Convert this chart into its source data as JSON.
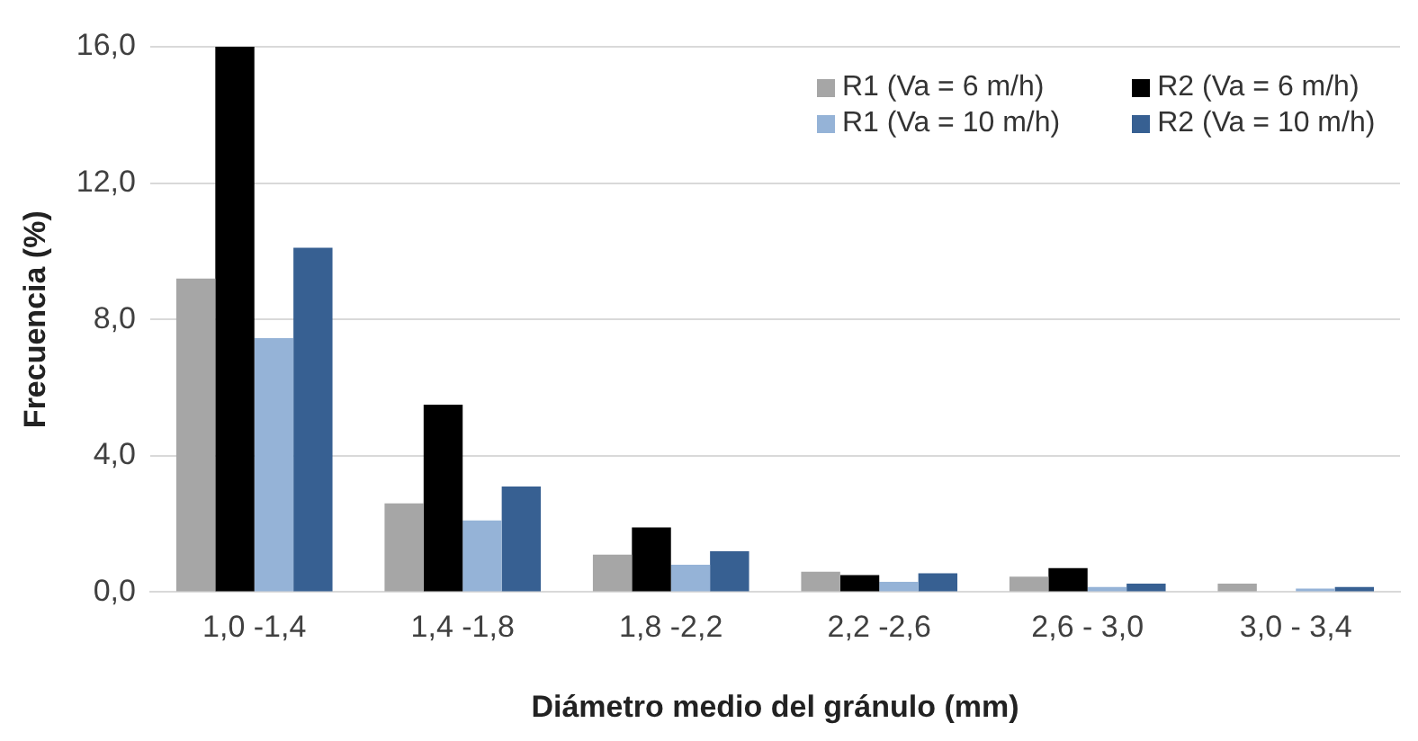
{
  "chart_data": {
    "type": "bar",
    "xlabel": "Diámetro medio del gránulo (mm)",
    "ylabel": "Frecuencia (%)",
    "categories": [
      "1,0 -1,4",
      "1,4 -1,8",
      "1,8 -2,2",
      "2,2 -2,6",
      "2,6 - 3,0",
      "3,0 - 3,4"
    ],
    "series": [
      {
        "name": "R1 (Va = 6 m/h)",
        "color": "#a6a6a6",
        "values": [
          9.2,
          2.6,
          1.1,
          0.6,
          0.45,
          0.25
        ]
      },
      {
        "name": "R2 (Va = 6 m/h)",
        "color": "#000000",
        "values": [
          16.0,
          5.5,
          1.9,
          0.5,
          0.7,
          0
        ]
      },
      {
        "name": "R1 (Va = 10 m/h)",
        "color": "#95b3d7",
        "values": [
          7.45,
          2.1,
          0.8,
          0.3,
          0.15,
          0.1
        ]
      },
      {
        "name": "R2 (Va = 10 m/h)",
        "color": "#376092",
        "values": [
          10.1,
          3.1,
          1.2,
          0.55,
          0.25,
          0.15
        ]
      }
    ],
    "ylim": [
      0,
      16
    ],
    "yticks": [
      {
        "value": 0,
        "label": "0,0"
      },
      {
        "value": 4,
        "label": "4,0"
      },
      {
        "value": 8,
        "label": "8,0"
      },
      {
        "value": 12,
        "label": "12,0"
      },
      {
        "value": 16,
        "label": "16,0"
      }
    ],
    "grid": "y",
    "legend": "top right"
  }
}
